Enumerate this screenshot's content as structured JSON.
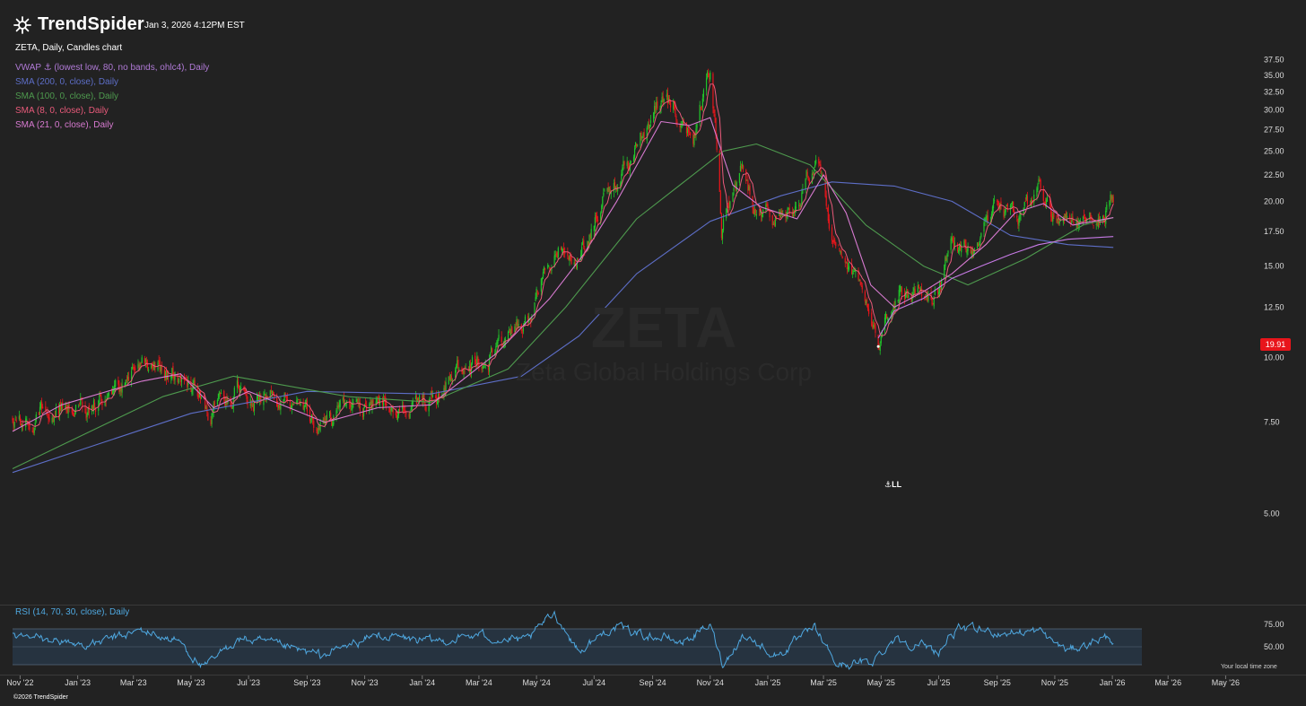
{
  "app": {
    "brand": "TrendSpider",
    "timestamp": "Jan 3, 2026 4:12PM EST",
    "chart_title": "ZETA, Daily, Candles chart",
    "watermark_ticker": "ZETA",
    "watermark_name": "Zeta Global Holdings Corp",
    "footer": "©2026 TrendSpider",
    "local_time_label": "Your local time zone",
    "anchor_label": "LL"
  },
  "legend": [
    {
      "text": "VWAP ⚓ (lowest low, 80, no bands, ohlc4), Daily",
      "color": "#b07ad6"
    },
    {
      "text": "SMA (200, 0, close), Daily",
      "color": "#5d6ec7"
    },
    {
      "text": "SMA (100, 0, close), Daily",
      "color": "#4e9a4e"
    },
    {
      "text": "SMA (8, 0, close), Daily",
      "color": "#e85a7a"
    },
    {
      "text": "SMA (21, 0, close), Daily",
      "color": "#d77ad0"
    }
  ],
  "rsi_label": "RSI (14, 70, 30, close), Daily",
  "last_price": "19.91",
  "colors": {
    "up": "#21c42a",
    "down": "#e8151b",
    "background": "#222222",
    "rsi": "#4fa8e0"
  },
  "chart_data": [
    {
      "type": "candlestick",
      "symbol": "ZETA",
      "timeframe": "Daily",
      "y_ticks": [
        "5.00",
        "7.50",
        "10.00",
        "12.50",
        "15.00",
        "17.50",
        "20.00",
        "22.50",
        "25.00",
        "27.50",
        "30.00",
        "32.50",
        "35.00",
        "37.50"
      ],
      "ylim": [
        3.5,
        38.5
      ],
      "x_ticks": [
        "Nov '22",
        "Jan '23",
        "Mar '23",
        "May '23",
        "Jul '23",
        "Sep '23",
        "Nov '23",
        "Jan '24",
        "Mar '24",
        "May '24",
        "Jul '24",
        "Sep '24",
        "Nov '24",
        "Jan '25",
        "Mar '25",
        "May '25",
        "Jul '25",
        "Sep '25",
        "Nov '25",
        "Jan '26",
        "Mar '26",
        "May '26"
      ],
      "x_range": [
        "2022-10-24",
        "2026-05-31"
      ],
      "last_price": 19.91,
      "close_path": [
        [
          "2022-10-24",
          7.7
        ],
        [
          "2022-12-01",
          8.3
        ],
        [
          "2023-01-15",
          8.0
        ],
        [
          "2023-03-10",
          9.5
        ],
        [
          "2023-04-15",
          9.3
        ],
        [
          "2023-05-20",
          7.8
        ],
        [
          "2023-06-20",
          8.6
        ],
        [
          "2023-08-01",
          8.4
        ],
        [
          "2023-09-15",
          7.3
        ],
        [
          "2023-10-15",
          7.7
        ],
        [
          "2023-11-15",
          8.2
        ],
        [
          "2023-12-15",
          7.8
        ],
        [
          "2024-01-10",
          8.4
        ],
        [
          "2024-02-15",
          9.5
        ],
        [
          "2024-03-25",
          10.3
        ],
        [
          "2024-04-25",
          11.6
        ],
        [
          "2024-05-20",
          16.5
        ],
        [
          "2024-06-20",
          16.0
        ],
        [
          "2024-07-10",
          20.0
        ],
        [
          "2024-08-10",
          24.0
        ],
        [
          "2024-09-10",
          30.5
        ],
        [
          "2024-09-25",
          31.5
        ],
        [
          "2024-10-15",
          27.5
        ],
        [
          "2024-11-01",
          35.5
        ],
        [
          "2024-11-13",
          17.5
        ],
        [
          "2024-12-05",
          22.5
        ],
        [
          "2024-12-20",
          19.0
        ],
        [
          "2025-01-25",
          18.5
        ],
        [
          "2025-02-20",
          24.0
        ],
        [
          "2025-03-10",
          17.5
        ],
        [
          "2025-04-10",
          13.5
        ],
        [
          "2025-04-28",
          11.0
        ],
        [
          "2025-05-20",
          13.5
        ],
        [
          "2025-06-15",
          13.5
        ],
        [
          "2025-07-01",
          13.0
        ],
        [
          "2025-07-15",
          16.5
        ],
        [
          "2025-08-10",
          15.5
        ],
        [
          "2025-08-28",
          19.5
        ],
        [
          "2025-09-25",
          18.5
        ],
        [
          "2025-10-15",
          21.0
        ],
        [
          "2025-11-01",
          18.5
        ],
        [
          "2025-11-25",
          17.5
        ],
        [
          "2025-12-15",
          19.0
        ],
        [
          "2026-01-02",
          19.91
        ]
      ],
      "series": [
        {
          "name": "SMA (200, 0, close)",
          "color": "#5d6ec7",
          "points": [
            [
              "2022-10-24",
              6.0
            ],
            [
              "2023-05-01",
              7.8
            ],
            [
              "2023-09-01",
              8.6
            ],
            [
              "2024-01-10",
              8.5
            ],
            [
              "2024-04-15",
              9.2
            ],
            [
              "2024-06-15",
              11.0
            ],
            [
              "2024-08-15",
              14.5
            ],
            [
              "2024-11-01",
              18.3
            ],
            [
              "2025-01-15",
              20.5
            ],
            [
              "2025-03-10",
              21.8
            ],
            [
              "2025-05-15",
              21.4
            ],
            [
              "2025-07-15",
              20.0
            ],
            [
              "2025-09-15",
              17.2
            ],
            [
              "2025-11-15",
              16.5
            ],
            [
              "2026-01-02",
              16.3
            ]
          ]
        },
        {
          "name": "SMA (100, 0, close)",
          "color": "#4e9a4e",
          "points": [
            [
              "2022-10-24",
              6.1
            ],
            [
              "2023-04-01",
              8.4
            ],
            [
              "2023-06-15",
              9.2
            ],
            [
              "2023-10-15",
              8.4
            ],
            [
              "2024-01-10",
              8.2
            ],
            [
              "2024-04-01",
              9.5
            ],
            [
              "2024-06-01",
              12.5
            ],
            [
              "2024-08-15",
              18.5
            ],
            [
              "2024-11-15",
              25.0
            ],
            [
              "2024-12-20",
              25.8
            ],
            [
              "2025-02-15",
              23.5
            ],
            [
              "2025-04-15",
              18.0
            ],
            [
              "2025-06-15",
              15.0
            ],
            [
              "2025-08-01",
              13.8
            ],
            [
              "2025-10-01",
              15.5
            ],
            [
              "2025-12-01",
              18.0
            ],
            [
              "2026-01-02",
              18.6
            ]
          ]
        },
        {
          "name": "SMA (21, 0, close)",
          "color": "#d77ad0",
          "points": [
            [
              "2022-10-24",
              7.2
            ],
            [
              "2022-12-15",
              8.1
            ],
            [
              "2023-03-10",
              9.0
            ],
            [
              "2023-04-20",
              9.3
            ],
            [
              "2023-05-25",
              8.0
            ],
            [
              "2023-07-01",
              8.6
            ],
            [
              "2023-09-20",
              7.5
            ],
            [
              "2023-11-15",
              8.0
            ],
            [
              "2024-01-10",
              8.1
            ],
            [
              "2024-03-20",
              10.2
            ],
            [
              "2024-05-15",
              13.0
            ],
            [
              "2024-06-20",
              15.8
            ],
            [
              "2024-07-25",
              20.0
            ],
            [
              "2024-09-10",
              28.5
            ],
            [
              "2024-10-10",
              28.0
            ],
            [
              "2024-11-01",
              29.0
            ],
            [
              "2024-11-25",
              21.5
            ],
            [
              "2024-12-25",
              19.5
            ],
            [
              "2025-02-01",
              18.5
            ],
            [
              "2025-03-01",
              22.5
            ],
            [
              "2025-03-25",
              19.0
            ],
            [
              "2025-04-20",
              13.8
            ],
            [
              "2025-05-15",
              12.5
            ],
            [
              "2025-06-15",
              13.4
            ],
            [
              "2025-07-15",
              14.5
            ],
            [
              "2025-08-20",
              16.5
            ],
            [
              "2025-09-20",
              19.0
            ],
            [
              "2025-10-20",
              19.8
            ],
            [
              "2025-11-20",
              18.0
            ],
            [
              "2026-01-02",
              18.6
            ]
          ]
        },
        {
          "name": "VWAP ⚓ (lowest low, 80, no bands, ohlc4)",
          "color": "#c77ae6",
          "points": [
            [
              "2025-04-28",
              10.9
            ],
            [
              "2025-05-15",
              12.3
            ],
            [
              "2025-06-15",
              13.0
            ],
            [
              "2025-07-15",
              14.2
            ],
            [
              "2025-08-15",
              15.0
            ],
            [
              "2025-09-15",
              15.8
            ],
            [
              "2025-10-15",
              16.5
            ],
            [
              "2025-11-15",
              16.9
            ],
            [
              "2026-01-02",
              17.1
            ]
          ]
        }
      ]
    },
    {
      "type": "line",
      "name": "RSI (14, 70, 30, close)",
      "y_ticks": [
        "50.00",
        "75.00"
      ],
      "ylim": [
        20,
        92
      ],
      "levels": [
        70,
        30
      ],
      "points": [
        [
          "2022-10-24",
          62
        ],
        [
          "2023-01-15",
          52
        ],
        [
          "2023-03-10",
          68
        ],
        [
          "2023-04-20",
          55
        ],
        [
          "2023-05-15",
          25
        ],
        [
          "2023-06-20",
          60
        ],
        [
          "2023-09-15",
          40
        ],
        [
          "2023-11-15",
          63
        ],
        [
          "2024-01-10",
          55
        ],
        [
          "2024-03-01",
          63
        ],
        [
          "2024-04-20",
          55
        ],
        [
          "2024-05-20",
          88
        ],
        [
          "2024-06-15",
          45
        ],
        [
          "2024-07-20",
          72
        ],
        [
          "2024-10-01",
          55
        ],
        [
          "2024-11-01",
          73
        ],
        [
          "2024-11-15",
          30
        ],
        [
          "2024-12-05",
          64
        ],
        [
          "2025-01-10",
          40
        ],
        [
          "2025-02-20",
          70
        ],
        [
          "2025-03-15",
          30
        ],
        [
          "2025-04-20",
          32
        ],
        [
          "2025-05-15",
          60
        ],
        [
          "2025-07-01",
          45
        ],
        [
          "2025-07-20",
          70
        ],
        [
          "2025-09-01",
          66
        ],
        [
          "2025-10-15",
          67
        ],
        [
          "2025-11-15",
          45
        ],
        [
          "2025-12-20",
          60
        ],
        [
          "2026-01-02",
          58
        ]
      ]
    }
  ]
}
